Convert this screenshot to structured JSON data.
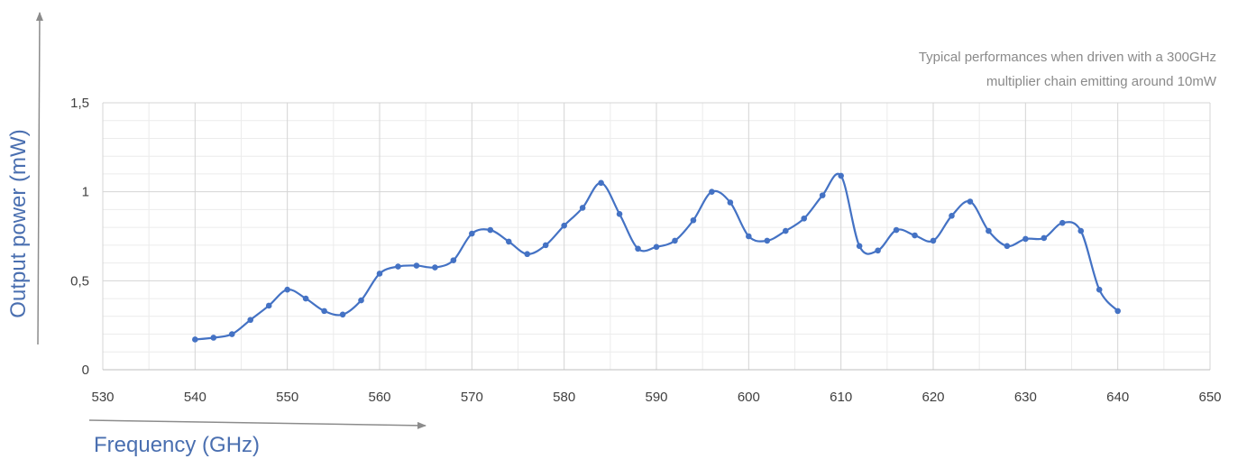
{
  "chart_data": {
    "type": "line",
    "title": "",
    "annotation_lines": [
      "Typical performances when driven with a 300GHz",
      "multiplier chain emitting around 10mW"
    ],
    "xlabel": "Frequency (GHz)",
    "ylabel": "Output power (mW)",
    "xlim": [
      530,
      650
    ],
    "ylim": [
      0,
      1.5
    ],
    "x_ticks": [
      530,
      540,
      550,
      560,
      570,
      580,
      590,
      600,
      610,
      620,
      630,
      640,
      650
    ],
    "y_ticks": [
      0,
      0.5,
      1,
      1.5
    ],
    "y_tick_labels": [
      "0",
      "0,5",
      "1",
      "1,5"
    ],
    "x_minor_step": 5,
    "y_minor_step": 0.1,
    "grid": true,
    "line_color": "#4472c4",
    "series": [
      {
        "x": [
          540,
          542,
          544,
          546,
          548,
          550,
          552,
          554,
          556,
          558,
          560,
          562,
          564,
          566,
          568,
          570,
          572,
          574,
          576,
          578,
          580,
          582,
          584,
          586,
          588,
          590,
          592,
          594,
          596,
          598,
          600,
          602,
          604,
          606,
          608,
          610,
          612,
          614,
          616,
          618,
          620,
          622,
          624,
          626,
          628,
          630,
          632,
          634,
          636,
          638,
          640
        ],
        "y": [
          0.17,
          0.18,
          0.2,
          0.28,
          0.36,
          0.45,
          0.4,
          0.33,
          0.31,
          0.39,
          0.54,
          0.58,
          0.585,
          0.575,
          0.615,
          0.765,
          0.785,
          0.72,
          0.65,
          0.7,
          0.81,
          0.91,
          1.05,
          0.875,
          0.68,
          0.69,
          0.725,
          0.84,
          1.0,
          0.94,
          0.75,
          0.725,
          0.78,
          0.85,
          0.98,
          1.09,
          0.695,
          0.67,
          0.785,
          0.755,
          0.725,
          0.865,
          0.945,
          0.78,
          0.695,
          0.735,
          0.74,
          0.825,
          0.78,
          0.45,
          0.33
        ]
      }
    ]
  }
}
